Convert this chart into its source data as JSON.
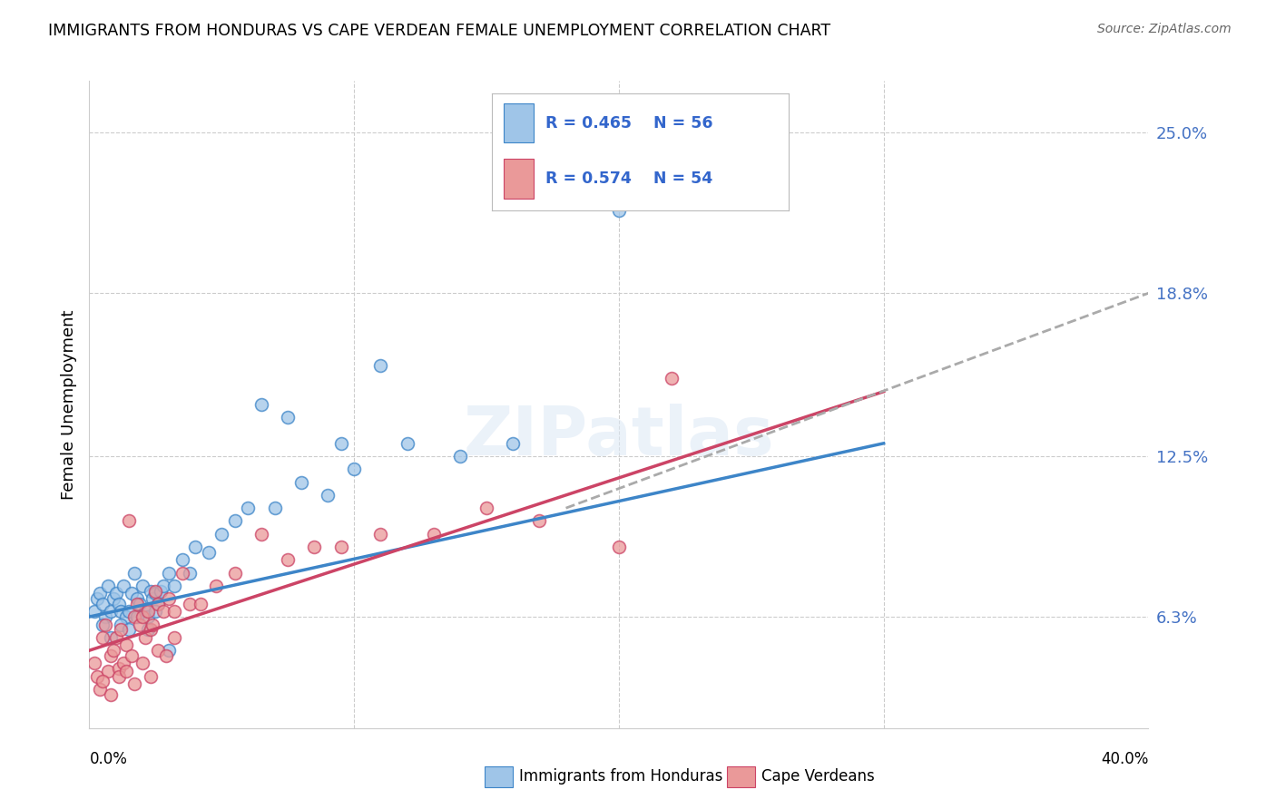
{
  "title": "IMMIGRANTS FROM HONDURAS VS CAPE VERDEAN FEMALE UNEMPLOYMENT CORRELATION CHART",
  "source": "Source: ZipAtlas.com",
  "ylabel": "Female Unemployment",
  "y_tick_labels": [
    "6.3%",
    "12.5%",
    "18.8%",
    "25.0%"
  ],
  "y_tick_values": [
    0.063,
    0.125,
    0.188,
    0.25
  ],
  "xlim": [
    0.0,
    0.4
  ],
  "ylim": [
    0.02,
    0.27
  ],
  "blue_color": "#9fc5e8",
  "pink_color": "#ea9999",
  "blue_line_color": "#3d85c8",
  "pink_line_color": "#cc4466",
  "blue_scatter_x": [
    0.002,
    0.003,
    0.004,
    0.005,
    0.006,
    0.007,
    0.008,
    0.009,
    0.01,
    0.011,
    0.012,
    0.013,
    0.014,
    0.015,
    0.016,
    0.017,
    0.018,
    0.019,
    0.02,
    0.021,
    0.022,
    0.023,
    0.024,
    0.025,
    0.026,
    0.027,
    0.028,
    0.03,
    0.032,
    0.035,
    0.038,
    0.04,
    0.045,
    0.05,
    0.055,
    0.06,
    0.07,
    0.08,
    0.09,
    0.1,
    0.12,
    0.14,
    0.16,
    0.2,
    0.005,
    0.008,
    0.012,
    0.015,
    0.018,
    0.022,
    0.025,
    0.03,
    0.065,
    0.075,
    0.095,
    0.11
  ],
  "blue_scatter_y": [
    0.065,
    0.07,
    0.072,
    0.068,
    0.063,
    0.075,
    0.065,
    0.07,
    0.072,
    0.068,
    0.065,
    0.075,
    0.063,
    0.065,
    0.072,
    0.08,
    0.07,
    0.068,
    0.075,
    0.065,
    0.063,
    0.073,
    0.07,
    0.072,
    0.068,
    0.073,
    0.075,
    0.08,
    0.075,
    0.085,
    0.08,
    0.09,
    0.088,
    0.095,
    0.1,
    0.105,
    0.105,
    0.115,
    0.11,
    0.12,
    0.13,
    0.125,
    0.13,
    0.22,
    0.06,
    0.055,
    0.06,
    0.058,
    0.063,
    0.058,
    0.065,
    0.05,
    0.145,
    0.14,
    0.13,
    0.16
  ],
  "pink_scatter_x": [
    0.002,
    0.003,
    0.004,
    0.005,
    0.006,
    0.007,
    0.008,
    0.009,
    0.01,
    0.011,
    0.012,
    0.013,
    0.014,
    0.015,
    0.016,
    0.017,
    0.018,
    0.019,
    0.02,
    0.021,
    0.022,
    0.023,
    0.024,
    0.025,
    0.026,
    0.028,
    0.03,
    0.032,
    0.035,
    0.038,
    0.042,
    0.048,
    0.055,
    0.065,
    0.075,
    0.085,
    0.095,
    0.11,
    0.13,
    0.15,
    0.17,
    0.2,
    0.22,
    0.005,
    0.008,
    0.011,
    0.014,
    0.017,
    0.02,
    0.023,
    0.026,
    0.029,
    0.032
  ],
  "pink_scatter_y": [
    0.045,
    0.04,
    0.035,
    0.055,
    0.06,
    0.042,
    0.048,
    0.05,
    0.055,
    0.043,
    0.058,
    0.045,
    0.052,
    0.1,
    0.048,
    0.063,
    0.068,
    0.06,
    0.063,
    0.055,
    0.065,
    0.058,
    0.06,
    0.073,
    0.068,
    0.065,
    0.07,
    0.065,
    0.08,
    0.068,
    0.068,
    0.075,
    0.08,
    0.095,
    0.085,
    0.09,
    0.09,
    0.095,
    0.095,
    0.105,
    0.1,
    0.09,
    0.155,
    0.038,
    0.033,
    0.04,
    0.042,
    0.037,
    0.045,
    0.04,
    0.05,
    0.048,
    0.055
  ],
  "blue_line_x0": 0.0,
  "blue_line_y0": 0.063,
  "blue_line_x1": 0.3,
  "blue_line_y1": 0.13,
  "pink_line_x0": 0.0,
  "pink_line_y0": 0.05,
  "pink_line_x1": 0.3,
  "pink_line_y1": 0.15,
  "dash_line_x0": 0.18,
  "dash_line_y0": 0.105,
  "dash_line_x1": 0.4,
  "dash_line_y1": 0.188
}
